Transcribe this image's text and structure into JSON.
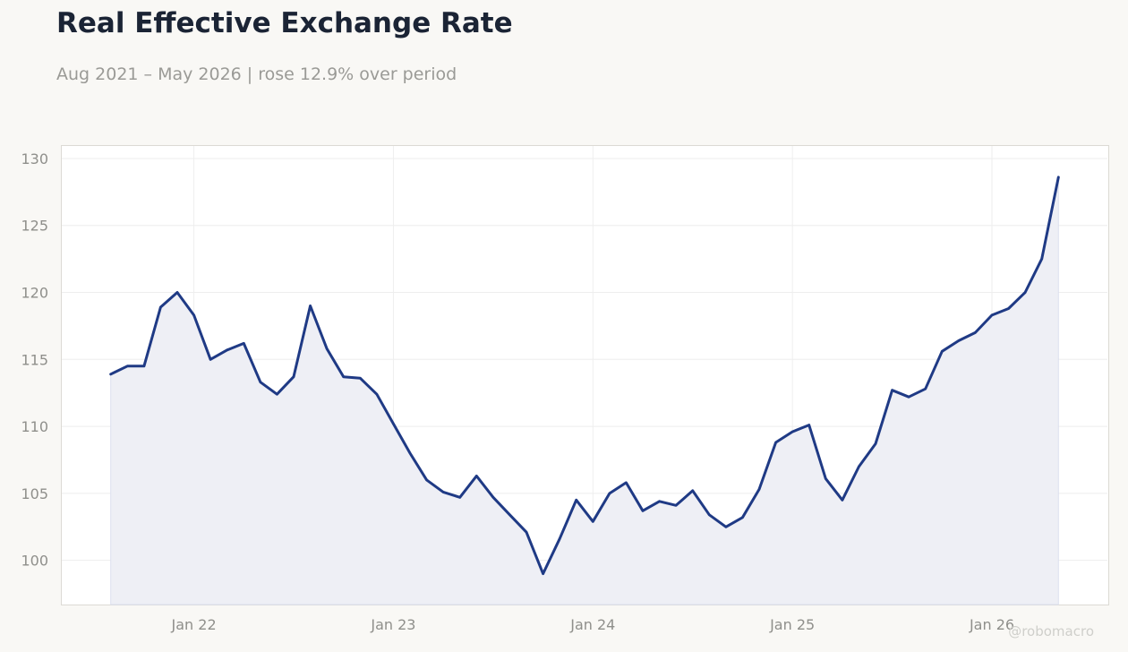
{
  "header": {
    "title": "Real Effective Exchange Rate",
    "subtitle": "Aug 2021 – May 2026 | rose 12.9% over period"
  },
  "watermark": "@robomacro",
  "colors": {
    "line": "#1f3a85",
    "fill": "#eeeff5",
    "background": "#f9f8f5",
    "plot_background": "#ffffff",
    "grid": "#eeeeee"
  },
  "chart_data": {
    "type": "area",
    "title": "Real Effective Exchange Rate",
    "subtitle": "Aug 2021 – May 2026 | rose 12.9% over period",
    "xlabel": "",
    "ylabel": "",
    "grid": true,
    "legend": "none",
    "x_range": [
      "2021-05",
      "2026-08"
    ],
    "ylim": [
      96.7,
      131
    ],
    "y_ticks": [
      100,
      105,
      110,
      115,
      120,
      125,
      130
    ],
    "x_ticks": [
      {
        "label": "Jan 22",
        "date": "2022-01"
      },
      {
        "label": "Jan 23",
        "date": "2023-01"
      },
      {
        "label": "Jan 24",
        "date": "2024-01"
      },
      {
        "label": "Jan 25",
        "date": "2025-01"
      },
      {
        "label": "Jan 26",
        "date": "2026-01"
      }
    ],
    "x": [
      "2021-08",
      "2021-09",
      "2021-10",
      "2021-11",
      "2021-12",
      "2022-01",
      "2022-02",
      "2022-03",
      "2022-04",
      "2022-05",
      "2022-06",
      "2022-07",
      "2022-08",
      "2022-09",
      "2022-10",
      "2022-11",
      "2022-12",
      "2023-01",
      "2023-02",
      "2023-03",
      "2023-04",
      "2023-05",
      "2023-06",
      "2023-07",
      "2023-08",
      "2023-09",
      "2023-10",
      "2023-11",
      "2023-12",
      "2024-01",
      "2024-02",
      "2024-03",
      "2024-04",
      "2024-05",
      "2024-06",
      "2024-07",
      "2024-08",
      "2024-09",
      "2024-10",
      "2024-11",
      "2024-12",
      "2025-01",
      "2025-02",
      "2025-03",
      "2025-04",
      "2025-05",
      "2025-06",
      "2025-07",
      "2025-08",
      "2025-09",
      "2025-10",
      "2025-11",
      "2025-12",
      "2026-01",
      "2026-02",
      "2026-03",
      "2026-04",
      "2026-05"
    ],
    "series": [
      {
        "values": [
          113.9,
          114.5,
          114.5,
          118.9,
          120.0,
          118.3,
          115.0,
          115.7,
          116.2,
          113.3,
          112.4,
          113.7,
          119.0,
          115.8,
          113.7,
          113.6,
          112.4,
          110.2,
          108.0,
          106.0,
          105.1,
          104.7,
          106.3,
          104.7,
          103.4,
          102.1,
          99.0,
          101.6,
          104.5,
          102.9,
          105.0,
          105.8,
          103.7,
          104.4,
          104.1,
          105.2,
          103.4,
          102.5,
          103.2,
          105.3,
          108.8,
          109.6,
          110.1,
          106.1,
          104.5,
          107.0,
          108.7,
          112.7,
          112.2,
          112.8,
          115.6,
          116.4,
          117.0,
          118.3,
          118.8,
          120.0,
          122.5,
          128.6
        ]
      }
    ]
  }
}
